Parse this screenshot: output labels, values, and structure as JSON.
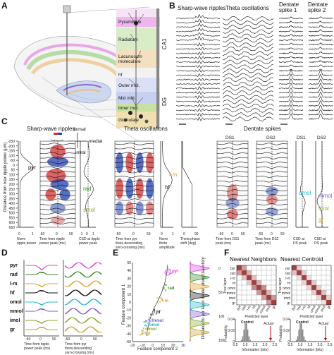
{
  "panels": {
    "A": {
      "label": "A",
      "layers": {
        "ca1": "CA1",
        "dg": "DG",
        "pyramidale": "Pyramidale",
        "radiatum": "Radiatum",
        "lacunosum": "Lacunosum\nmoleculare",
        "hf": "hf",
        "outer_mol": "Outer mol.",
        "mid_mol": "Mid mol.",
        "inner_mol": "Inner mol.",
        "granulare": "Granulare"
      },
      "compass": {
        "dorsal": "dorsal",
        "ventral": "ventral",
        "lateral": "lateral",
        "medial": "medial"
      }
    },
    "B": {
      "label": "B",
      "titles": [
        "Sharp-wave ripples",
        "Theta oscillations",
        "Dentate\nspike 1",
        "Dentate\nspike 2"
      ]
    },
    "C": {
      "label": "C",
      "group_titles": {
        "swr": "Sharp-wave ripples",
        "theta": "Theta oscillations",
        "ds": "Dentate spikes"
      },
      "ds_subtitles": [
        "DS1",
        "DS2",
        "DS1",
        "DS2"
      ],
      "y_axis_label": "Distance from max ripple power (µm)",
      "y_ticks": [
        "-250",
        "-200",
        "-150",
        "-100",
        "-50",
        "0",
        "50",
        "100",
        "150",
        "200",
        "250",
        "300",
        "350",
        "400",
        "450",
        "500",
        "550",
        "600",
        "650"
      ],
      "layer_tags": {
        "pyr": "pyr",
        "rad": "rad",
        "lm": "l-m",
        "hf": "hf",
        "smol": "smol",
        "omol": "omol",
        "mmol": "mmol",
        "imol": "imol",
        "gr": "gr"
      },
      "xlabels": {
        "norm_ripple": "Norm\nripple power",
        "ripple_time": "Time from ripple\npower peak (ms)",
        "csd_ripple": "CSD at ripple\npower peak",
        "theta_time": "Time from pyr\ntheta descending\nzero-crossing (ms)",
        "norm_theta": "Norm\ntheta\namplitude",
        "theta_phase": "Theta phase\nshift (deg)",
        "ds1_time": "Time from DS1\npeak (ms)",
        "ds2_time": "Time from DS2\npeak (ms)",
        "csd_ds1": "CSD at\nDS peak",
        "csd_ds2": "CSD at\nDS peak"
      },
      "x_ticks": {
        "norm": [
          "0",
          "1"
        ],
        "ms50": [
          "-50",
          "0",
          "50"
        ],
        "csd": [
          "-1",
          "0",
          "1"
        ],
        "phase": [
          "0",
          "90"
        ]
      }
    },
    "D": {
      "label": "D",
      "layers": [
        "pyr",
        "rad",
        "l-m",
        "hf",
        "omol",
        "mmol",
        "imol",
        "gr"
      ],
      "xlabel_left": "Time from ripple\npower peak (ms)",
      "xlabel_right": "Time from pyr\ntheta descending\nzero-crossing (ms)",
      "x_ticks_left": [
        "-50",
        "0",
        "50"
      ],
      "x_ticks_right": [
        "-50",
        "0",
        "50"
      ]
    },
    "E": {
      "label": "E",
      "ylabel": "Feature component 1",
      "xlabel": "Feature component 2",
      "side_label": "Distance to pyr layer center along trajectory",
      "y_ticks": [
        "-50",
        "-40",
        "-30",
        "-20",
        "-10",
        "0",
        "10",
        "20",
        "30",
        "40",
        "50"
      ],
      "x_ticks": [
        "-20",
        "-10",
        "0",
        "10",
        "20",
        "30"
      ],
      "side_ticks": [
        "0",
        "50",
        "100",
        "150"
      ],
      "point_labels": [
        "pyr",
        "rad",
        "l-m",
        "hf",
        "mmol",
        "omol",
        "imol",
        "gr"
      ]
    },
    "F": {
      "label": "F",
      "titles": [
        "Nearest Neighbors",
        "Nearest Centroid"
      ],
      "row_labels": [
        "pyr",
        "rad",
        "l-m",
        "hf",
        "omol",
        "mmol",
        "imol",
        "gr"
      ],
      "ylabel": "True layer",
      "xlabel": "Predicted layer",
      "hist_ylabel": "Probability",
      "hist_xlabel": "Information (bits)",
      "control": "Control",
      "actual": "Actual",
      "hist_x_ticks": [
        "0.5",
        "1.0",
        "1.5",
        "2.0",
        "2.5"
      ],
      "hist_y_ticks": [
        "0",
        "0.02",
        "0.04"
      ]
    }
  },
  "colors": {
    "pyr": "#e040e0",
    "rad": "#3a8a2a",
    "lm": "#e0a030",
    "hf": "#111111",
    "omol": "#20b8c8",
    "mmol": "#7a5cc8",
    "imol": "#8aa82a",
    "gr": "#c8a030",
    "csd_sink": "#d03030",
    "csd_source": "#2040b0",
    "confusion": "#8a1010"
  }
}
